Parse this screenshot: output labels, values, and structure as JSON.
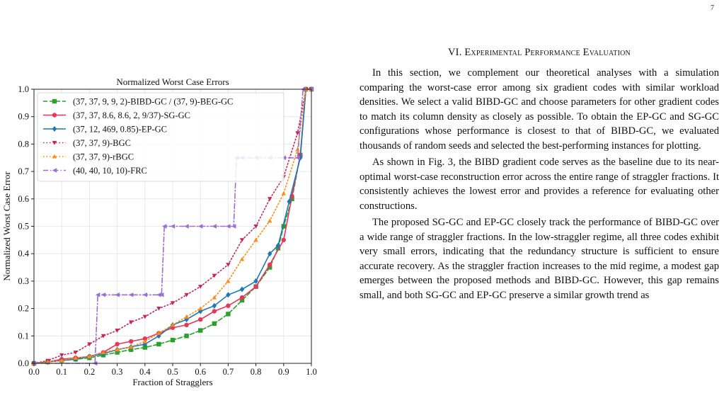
{
  "page": {
    "number": "7"
  },
  "figure": {
    "chart_data": {
      "type": "line",
      "title": "Normalized Worst Case Errors",
      "xlabel": "Fraction of Stragglers",
      "ylabel": "Normalized Worst Case Error",
      "xlim": [
        0.0,
        1.0
      ],
      "ylim": [
        0.0,
        1.0
      ],
      "xticks": [
        "0.0",
        "0.1",
        "0.2",
        "0.3",
        "0.4",
        "0.5",
        "0.6",
        "0.7",
        "0.8",
        "0.9",
        "1.0"
      ],
      "yticks": [
        "0.0",
        "0.1",
        "0.2",
        "0.3",
        "0.4",
        "0.5",
        "0.6",
        "0.7",
        "0.8",
        "0.9",
        "1.0"
      ],
      "grid": true,
      "legend_position": "upper-left",
      "series": [
        {
          "name": "(37, 37, 9, 9, 2)-BIBD-GC / (37, 9)-BEG-GC",
          "color": "#2ca02c",
          "dash": "dashed",
          "marker": "square",
          "step": false,
          "points": [
            [
              0.0,
              0.0
            ],
            [
              0.05,
              0.005
            ],
            [
              0.1,
              0.01
            ],
            [
              0.15,
              0.015
            ],
            [
              0.2,
              0.02
            ],
            [
              0.25,
              0.03
            ],
            [
              0.3,
              0.04
            ],
            [
              0.35,
              0.05
            ],
            [
              0.4,
              0.058
            ],
            [
              0.45,
              0.07
            ],
            [
              0.5,
              0.085
            ],
            [
              0.55,
              0.1
            ],
            [
              0.6,
              0.12
            ],
            [
              0.65,
              0.145
            ],
            [
              0.7,
              0.18
            ],
            [
              0.75,
              0.23
            ],
            [
              0.8,
              0.28
            ],
            [
              0.85,
              0.35
            ],
            [
              0.88,
              0.42
            ],
            [
              0.9,
              0.5
            ],
            [
              0.93,
              0.6
            ],
            [
              0.96,
              0.76
            ],
            [
              0.98,
              1.0
            ],
            [
              1.0,
              1.0
            ]
          ]
        },
        {
          "name": "(37, 37, 8.6, 8.6, 2, 9/37)-SG-GC",
          "color": "#e6375a",
          "dash": "solid",
          "marker": "circle",
          "step": false,
          "points": [
            [
              0.0,
              0.0
            ],
            [
              0.05,
              0.005
            ],
            [
              0.1,
              0.015
            ],
            [
              0.15,
              0.02
            ],
            [
              0.2,
              0.025
            ],
            [
              0.25,
              0.04
            ],
            [
              0.3,
              0.07
            ],
            [
              0.35,
              0.08
            ],
            [
              0.4,
              0.09
            ],
            [
              0.45,
              0.11
            ],
            [
              0.5,
              0.13
            ],
            [
              0.55,
              0.14
            ],
            [
              0.6,
              0.16
            ],
            [
              0.65,
              0.19
            ],
            [
              0.7,
              0.21
            ],
            [
              0.75,
              0.24
            ],
            [
              0.8,
              0.28
            ],
            [
              0.85,
              0.36
            ],
            [
              0.9,
              0.45
            ],
            [
              0.93,
              0.61
            ],
            [
              0.96,
              0.76
            ],
            [
              0.98,
              1.0
            ],
            [
              1.0,
              1.0
            ]
          ]
        },
        {
          "name": "(37, 12, 469, 0.85)-EP-GC",
          "color": "#1f77b4",
          "dash": "solid",
          "marker": "diamond",
          "step": false,
          "points": [
            [
              0.0,
              0.0
            ],
            [
              0.05,
              0.005
            ],
            [
              0.1,
              0.01
            ],
            [
              0.15,
              0.015
            ],
            [
              0.2,
              0.025
            ],
            [
              0.25,
              0.035
            ],
            [
              0.3,
              0.05
            ],
            [
              0.35,
              0.06
            ],
            [
              0.4,
              0.07
            ],
            [
              0.45,
              0.1
            ],
            [
              0.5,
              0.14
            ],
            [
              0.55,
              0.16
            ],
            [
              0.6,
              0.19
            ],
            [
              0.65,
              0.21
            ],
            [
              0.7,
              0.25
            ],
            [
              0.75,
              0.27
            ],
            [
              0.8,
              0.3
            ],
            [
              0.85,
              0.4
            ],
            [
              0.88,
              0.43
            ],
            [
              0.92,
              0.59
            ],
            [
              0.96,
              0.75
            ],
            [
              0.98,
              1.0
            ],
            [
              1.0,
              1.0
            ]
          ]
        },
        {
          "name": "(37, 37, 9)-BGC",
          "color": "#c0285c",
          "dash": "dotted",
          "marker": "triangle-down",
          "step": false,
          "points": [
            [
              0.0,
              0.0
            ],
            [
              0.05,
              0.01
            ],
            [
              0.1,
              0.03
            ],
            [
              0.15,
              0.04
            ],
            [
              0.2,
              0.07
            ],
            [
              0.25,
              0.1
            ],
            [
              0.3,
              0.12
            ],
            [
              0.35,
              0.15
            ],
            [
              0.4,
              0.17
            ],
            [
              0.45,
              0.2
            ],
            [
              0.5,
              0.22
            ],
            [
              0.55,
              0.25
            ],
            [
              0.6,
              0.28
            ],
            [
              0.65,
              0.32
            ],
            [
              0.7,
              0.36
            ],
            [
              0.75,
              0.45
            ],
            [
              0.8,
              0.5
            ],
            [
              0.85,
              0.6
            ],
            [
              0.9,
              0.68
            ],
            [
              0.95,
              0.84
            ],
            [
              0.98,
              1.0
            ],
            [
              1.0,
              1.0
            ]
          ]
        },
        {
          "name": "(37, 37, 9)-rBGC",
          "color": "#ff8c1a",
          "dash": "dotted",
          "marker": "triangle-up",
          "step": false,
          "points": [
            [
              0.0,
              0.0
            ],
            [
              0.05,
              0.005
            ],
            [
              0.1,
              0.01
            ],
            [
              0.15,
              0.02
            ],
            [
              0.2,
              0.025
            ],
            [
              0.25,
              0.04
            ],
            [
              0.3,
              0.05
            ],
            [
              0.35,
              0.06
            ],
            [
              0.4,
              0.08
            ],
            [
              0.45,
              0.11
            ],
            [
              0.5,
              0.14
            ],
            [
              0.55,
              0.17
            ],
            [
              0.6,
              0.2
            ],
            [
              0.65,
              0.24
            ],
            [
              0.7,
              0.3
            ],
            [
              0.75,
              0.38
            ],
            [
              0.8,
              0.45
            ],
            [
              0.85,
              0.52
            ],
            [
              0.9,
              0.62
            ],
            [
              0.95,
              0.78
            ],
            [
              0.98,
              1.0
            ],
            [
              1.0,
              1.0
            ]
          ]
        },
        {
          "name": "(40, 40, 10, 10)-FRC",
          "color": "#9a6fd1",
          "dash": "dashdot",
          "marker": "tri-left",
          "step": true,
          "points": [
            [
              0.0,
              0.0
            ],
            [
              0.22,
              0.0
            ],
            [
              0.23,
              0.25
            ],
            [
              0.25,
              0.25
            ],
            [
              0.3,
              0.25
            ],
            [
              0.35,
              0.25
            ],
            [
              0.4,
              0.25
            ],
            [
              0.45,
              0.25
            ],
            [
              0.46,
              0.25
            ],
            [
              0.47,
              0.5
            ],
            [
              0.5,
              0.5
            ],
            [
              0.55,
              0.5
            ],
            [
              0.6,
              0.5
            ],
            [
              0.65,
              0.5
            ],
            [
              0.7,
              0.5
            ],
            [
              0.72,
              0.5
            ],
            [
              0.73,
              0.75
            ],
            [
              0.75,
              0.75
            ],
            [
              0.8,
              0.75
            ],
            [
              0.85,
              0.75
            ],
            [
              0.9,
              0.75
            ],
            [
              0.95,
              0.75
            ],
            [
              0.97,
              1.0
            ],
            [
              1.0,
              1.0
            ]
          ]
        }
      ]
    }
  },
  "section": {
    "number": "VI.",
    "title": "Experimental Performance Evaluation",
    "paragraphs": [
      "In this section, we complement our theoretical analyses with a simulation comparing the worst-case error among six gradient codes with similar workload densities. We select a valid BIBD-GC and choose parameters for other gradient codes to match its column density as closely as possible. To obtain the EP-GC and SG-GC configurations whose performance is closest to that of BIBD-GC, we evaluated thousands of random seeds and selected the best-performing instances for plotting.",
      "As shown in Fig. 3, the BIBD gradient code serves as the baseline due to its near-optimal worst-case reconstruction error across the entire range of straggler fractions. It consistently achieves the lowest error and provides a reference for evaluating other constructions.",
      "The proposed SG-GC and EP-GC closely track the performance of BIBD-GC over a wide range of straggler fractions. In the low-straggler regime, all three codes exhibit very small errors, indicating that the redundancy structure is sufficient to ensure accurate recovery. As the straggler fraction increases to the mid regime, a modest gap emerges between the proposed methods and BIBD-GC. However, this gap remains small, and both SG-GC and EP-GC preserve a similar growth trend as"
    ]
  }
}
